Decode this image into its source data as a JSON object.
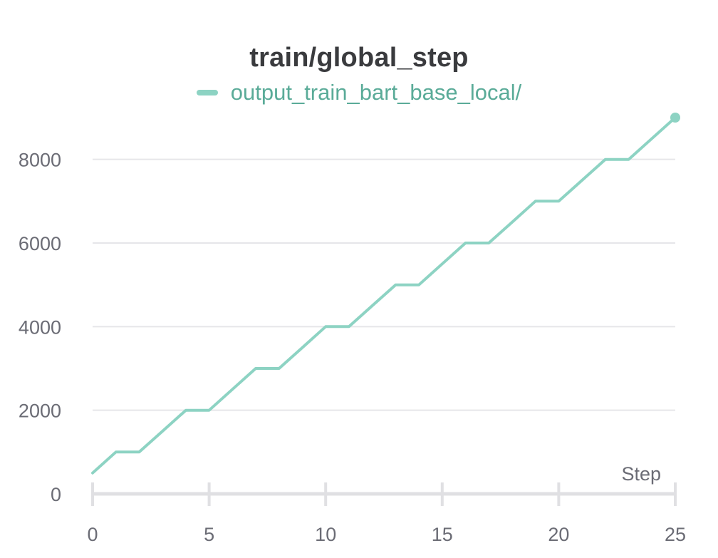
{
  "chart_data": {
    "type": "line",
    "title": "train/global_step",
    "xlabel": "Step",
    "ylabel": "",
    "xlim": [
      0,
      25
    ],
    "ylim": [
      0,
      9000
    ],
    "x_ticks": [
      0,
      5,
      10,
      15,
      20,
      25
    ],
    "y_ticks": [
      0,
      2000,
      4000,
      6000,
      8000
    ],
    "grid": true,
    "legend_position": "top-center",
    "series": [
      {
        "name": "output_train_bart_base_local/",
        "color": "#8dd3c3",
        "x": [
          0,
          1,
          2,
          3,
          4,
          5,
          6,
          7,
          8,
          9,
          10,
          11,
          12,
          13,
          14,
          15,
          16,
          17,
          18,
          19,
          20,
          21,
          22,
          23,
          24,
          25
        ],
        "values": [
          500,
          1000,
          1000,
          1500,
          2000,
          2000,
          2500,
          3000,
          3000,
          3500,
          4000,
          4000,
          4500,
          5000,
          5000,
          5500,
          6000,
          6000,
          6500,
          7000,
          7000,
          7500,
          8000,
          8000,
          8500,
          9000
        ]
      }
    ]
  },
  "colors": {
    "legend_text": "#5aab98",
    "grid": "#e6e6e9",
    "axis": "#e0e0e3"
  }
}
